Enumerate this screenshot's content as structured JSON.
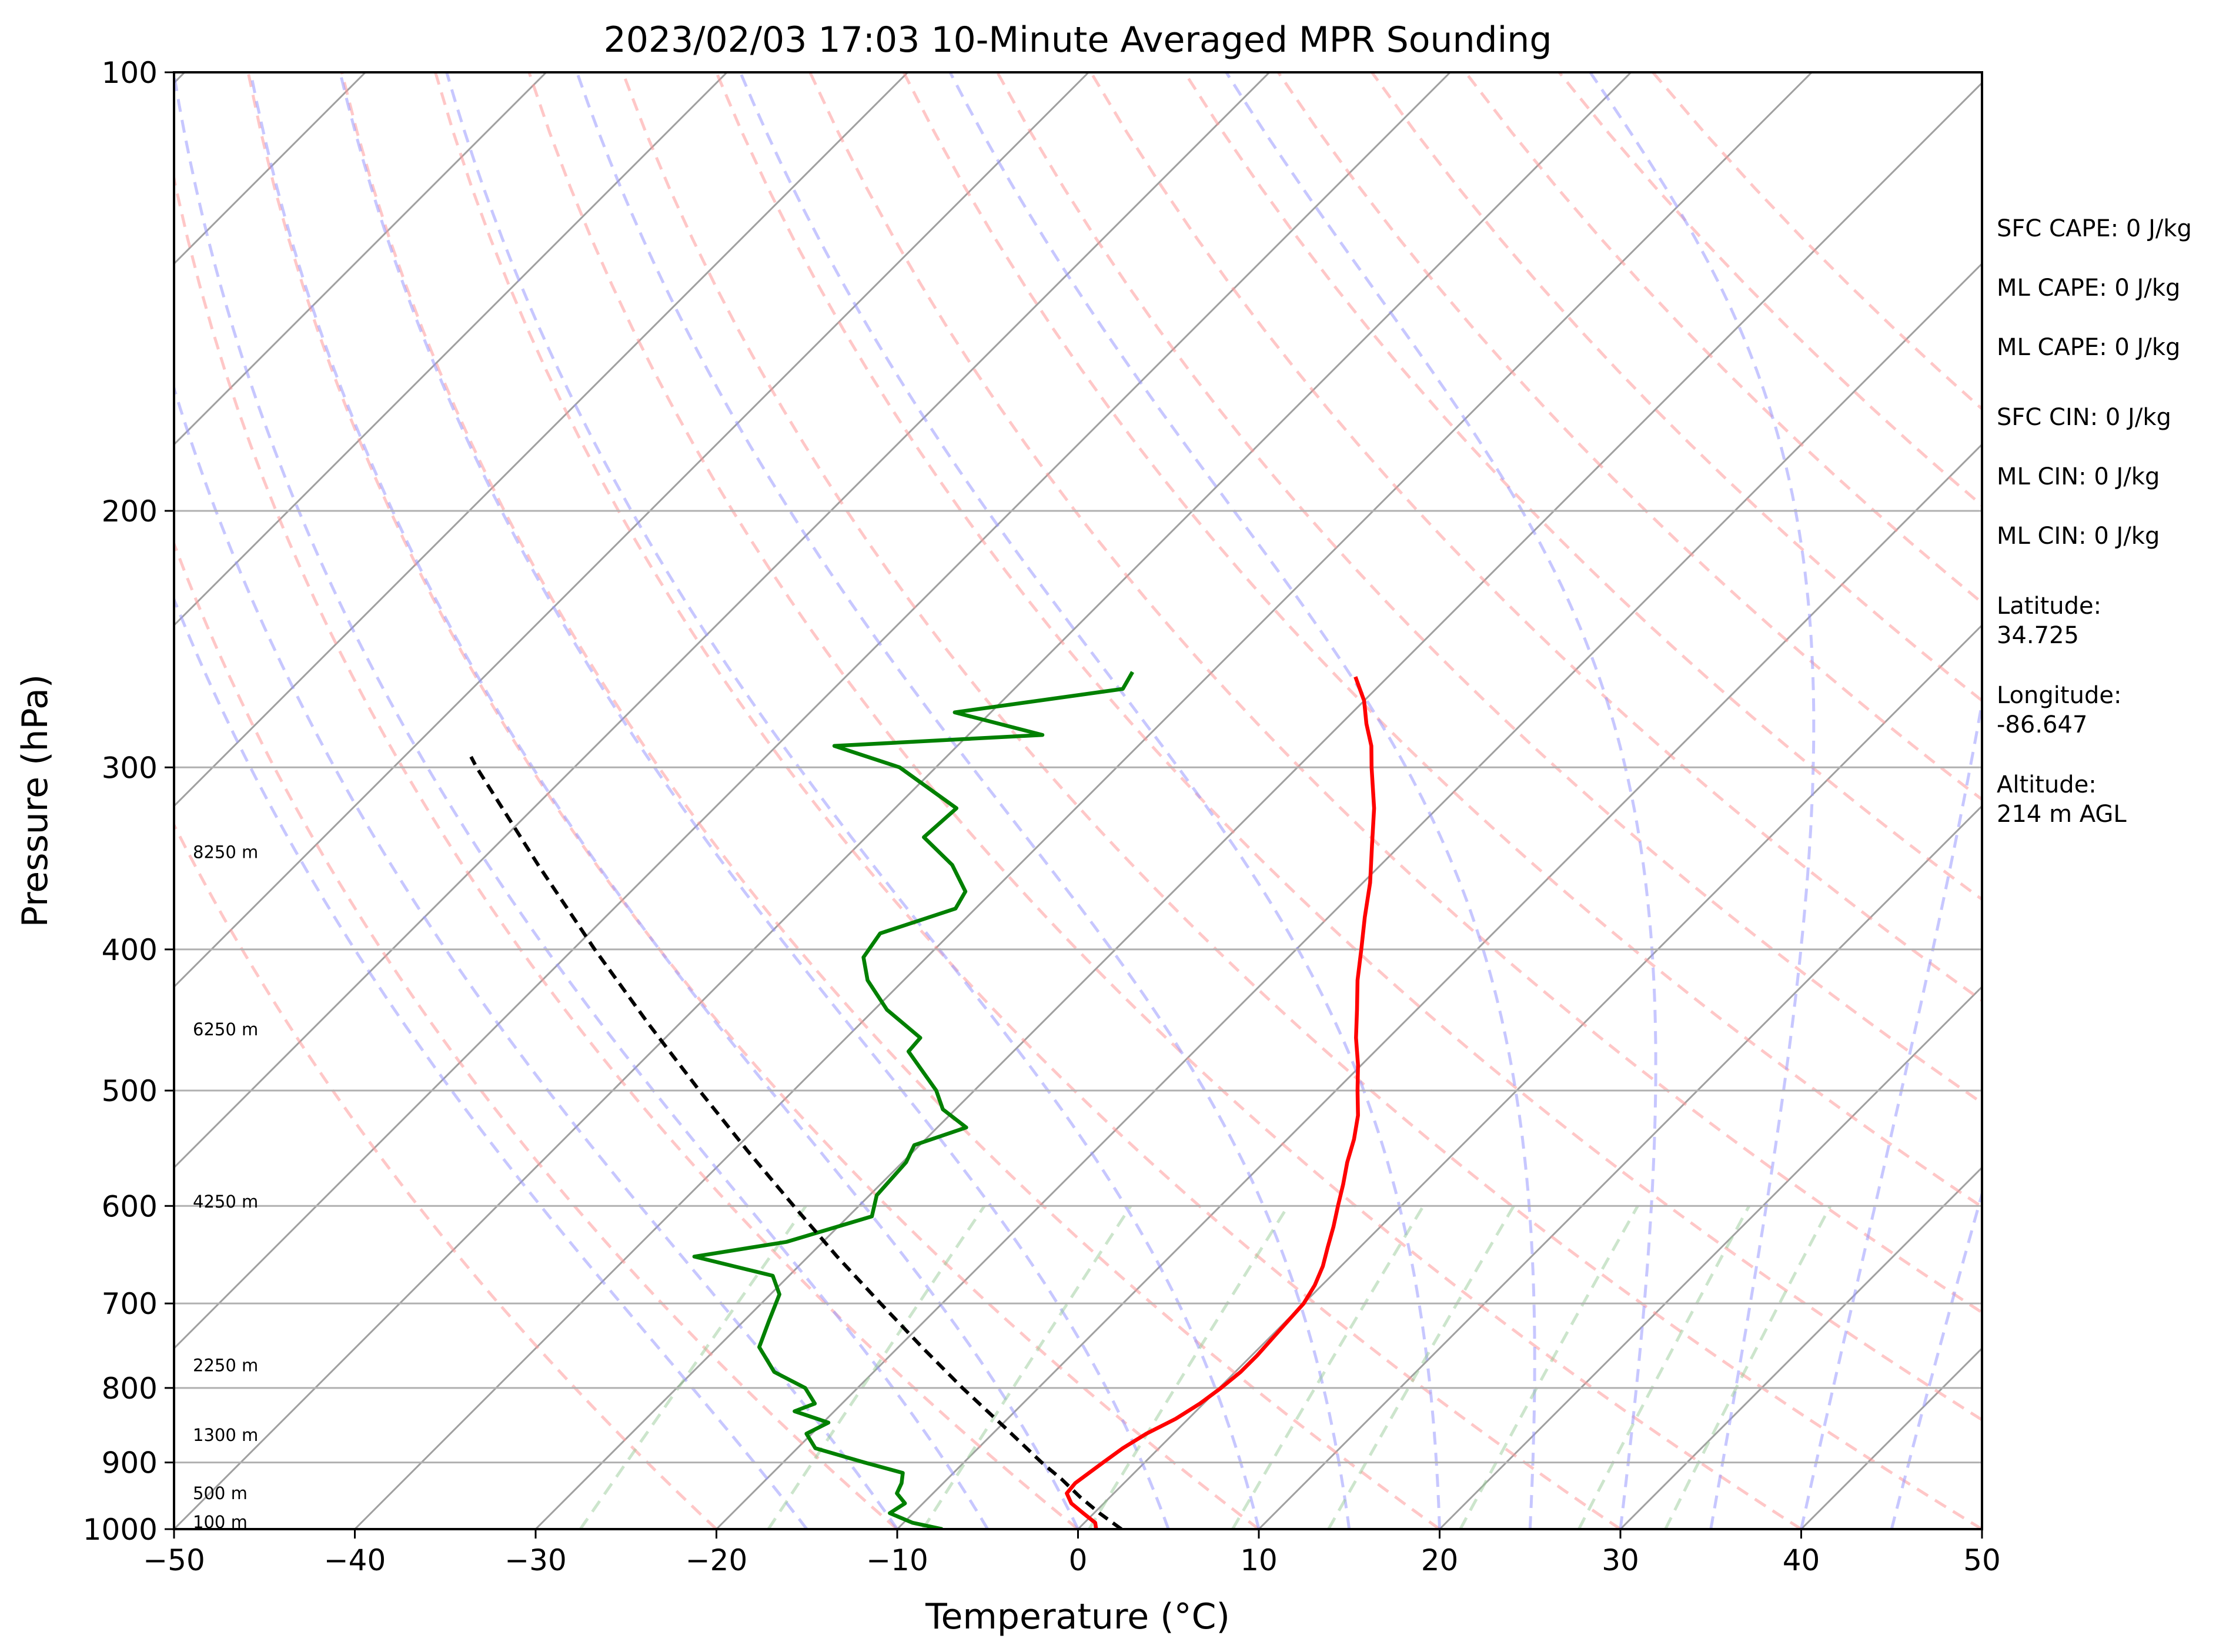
{
  "chart_data": {
    "type": "line",
    "title": "2023/02/03 17:03 10-Minute Averaged MPR Sounding",
    "xlabel": "Temperature (°C)",
    "ylabel": "Pressure (hPa)",
    "xlim": [
      -50,
      50
    ],
    "ylim": [
      1000,
      100
    ],
    "y_scale": "log",
    "skew": "skew-T (45°)",
    "x_ticks": [
      -50,
      -40,
      -30,
      -20,
      -10,
      0,
      10,
      20,
      30,
      40,
      50
    ],
    "y_ticks": [
      1000,
      900,
      800,
      700,
      600,
      500,
      400,
      300,
      200,
      100
    ],
    "grid": true,
    "background_lines": {
      "isotherms": {
        "color": "#a0a0a0",
        "style": "solid"
      },
      "dry_adiabats": {
        "color": "#ff9999",
        "style": "dashed"
      },
      "moist_adiabats": {
        "color": "#9999ff",
        "style": "dashed"
      },
      "mixing_ratio_lines": {
        "color": "#99cc99",
        "style": "dashed",
        "top_pressure": 600
      }
    },
    "series": [
      {
        "color": "#ff0000",
        "points": [
          [
            1000,
            1.0
          ],
          [
            990,
            0.6
          ],
          [
            975,
            -0.6
          ],
          [
            960,
            -1.8
          ],
          [
            945,
            -2.6
          ],
          [
            930,
            -2.7
          ],
          [
            915,
            -2.5
          ],
          [
            900,
            -2.3
          ],
          [
            880,
            -2.0
          ],
          [
            860,
            -1.5
          ],
          [
            840,
            -0.7
          ],
          [
            820,
            -0.2
          ],
          [
            800,
            0.1
          ],
          [
            780,
            0.3
          ],
          [
            760,
            0.3
          ],
          [
            740,
            0.2
          ],
          [
            720,
            0.1
          ],
          [
            700,
            0.0
          ],
          [
            680,
            -0.4
          ],
          [
            660,
            -1.0
          ],
          [
            640,
            -1.8
          ],
          [
            620,
            -2.6
          ],
          [
            600,
            -3.5
          ],
          [
            580,
            -4.4
          ],
          [
            560,
            -5.4
          ],
          [
            540,
            -6.3
          ],
          [
            520,
            -7.4
          ],
          [
            500,
            -8.8
          ],
          [
            480,
            -10.2
          ],
          [
            460,
            -11.8
          ],
          [
            440,
            -13.3
          ],
          [
            420,
            -14.9
          ],
          [
            400,
            -16.4
          ],
          [
            380,
            -18.0
          ],
          [
            360,
            -19.6
          ],
          [
            340,
            -21.5
          ],
          [
            320,
            -23.5
          ],
          [
            300,
            -25.9
          ],
          [
            290,
            -27.1
          ],
          [
            280,
            -28.6
          ],
          [
            270,
            -30.0
          ],
          [
            260,
            -31.8
          ]
        ]
      },
      {
        "color": "#008000",
        "points": [
          [
            1000,
            -7.5
          ],
          [
            990,
            -9.5
          ],
          [
            975,
            -11.3
          ],
          [
            960,
            -11.0
          ],
          [
            945,
            -12.0
          ],
          [
            930,
            -12.3
          ],
          [
            915,
            -12.8
          ],
          [
            900,
            -15.5
          ],
          [
            880,
            -19.0
          ],
          [
            860,
            -20.3
          ],
          [
            845,
            -19.7
          ],
          [
            830,
            -22.2
          ],
          [
            820,
            -21.5
          ],
          [
            800,
            -22.9
          ],
          [
            780,
            -25.5
          ],
          [
            750,
            -27.7
          ],
          [
            720,
            -28.6
          ],
          [
            690,
            -29.5
          ],
          [
            670,
            -30.9
          ],
          [
            650,
            -36.3
          ],
          [
            635,
            -32.0
          ],
          [
            610,
            -28.7
          ],
          [
            590,
            -29.6
          ],
          [
            560,
            -29.8
          ],
          [
            545,
            -30.3
          ],
          [
            530,
            -28.4
          ],
          [
            515,
            -30.7
          ],
          [
            500,
            -32.1
          ],
          [
            470,
            -35.8
          ],
          [
            460,
            -35.9
          ],
          [
            440,
            -39.3
          ],
          [
            420,
            -42.0
          ],
          [
            405,
            -43.5
          ],
          [
            390,
            -43.9
          ],
          [
            375,
            -41.1
          ],
          [
            365,
            -41.5
          ],
          [
            350,
            -43.7
          ],
          [
            335,
            -46.8
          ],
          [
            320,
            -46.6
          ],
          [
            300,
            -52.0
          ],
          [
            290,
            -56.8
          ],
          [
            285,
            -45.9
          ],
          [
            275,
            -52.0
          ],
          [
            265,
            -44.0
          ],
          [
            258,
            -44.4
          ]
        ]
      },
      {
        "color": "#000000",
        "style": "dashed",
        "points": [
          [
            1000,
            2.4
          ],
          [
            975,
            0.3
          ],
          [
            950,
            -1.7
          ],
          [
            925,
            -3.6
          ],
          [
            900,
            -5.7
          ],
          [
            850,
            -9.8
          ],
          [
            800,
            -14.2
          ],
          [
            750,
            -18.7
          ],
          [
            700,
            -23.4
          ],
          [
            650,
            -28.4
          ],
          [
            600,
            -33.6
          ],
          [
            550,
            -39.2
          ],
          [
            500,
            -45.2
          ],
          [
            450,
            -51.7
          ],
          [
            400,
            -58.8
          ],
          [
            350,
            -66.6
          ],
          [
            300,
            -75.4
          ],
          [
            295,
            -76.3
          ]
        ]
      }
    ],
    "height_labels": [
      {
        "text": "100 m",
        "pressure": 989
      },
      {
        "text": "500 m",
        "pressure": 945
      },
      {
        "text": "1300 m",
        "pressure": 862
      },
      {
        "text": "2250 m",
        "pressure": 772
      },
      {
        "text": "4250 m",
        "pressure": 596
      },
      {
        "text": "6250 m",
        "pressure": 454
      },
      {
        "text": "8250 m",
        "pressure": 343
      }
    ]
  },
  "info_panel": [
    {
      "lines": [
        "SFC CAPE: 0 J/kg"
      ]
    },
    {
      "lines": [
        "ML CAPE: 0 J/kg"
      ]
    },
    {
      "lines": [
        "ML CAPE: 0 J/kg"
      ]
    },
    {
      "lines": [
        "SFC CIN: 0 J/kg"
      ]
    },
    {
      "lines": [
        "ML CIN: 0 J/kg"
      ]
    },
    {
      "lines": [
        "ML CIN: 0 J/kg"
      ]
    },
    {
      "lines": [
        "Latitude:",
        "34.725"
      ]
    },
    {
      "lines": [
        "Longitude:",
        "-86.647"
      ]
    },
    {
      "lines": [
        "Altitude:",
        "214 m AGL"
      ]
    }
  ]
}
